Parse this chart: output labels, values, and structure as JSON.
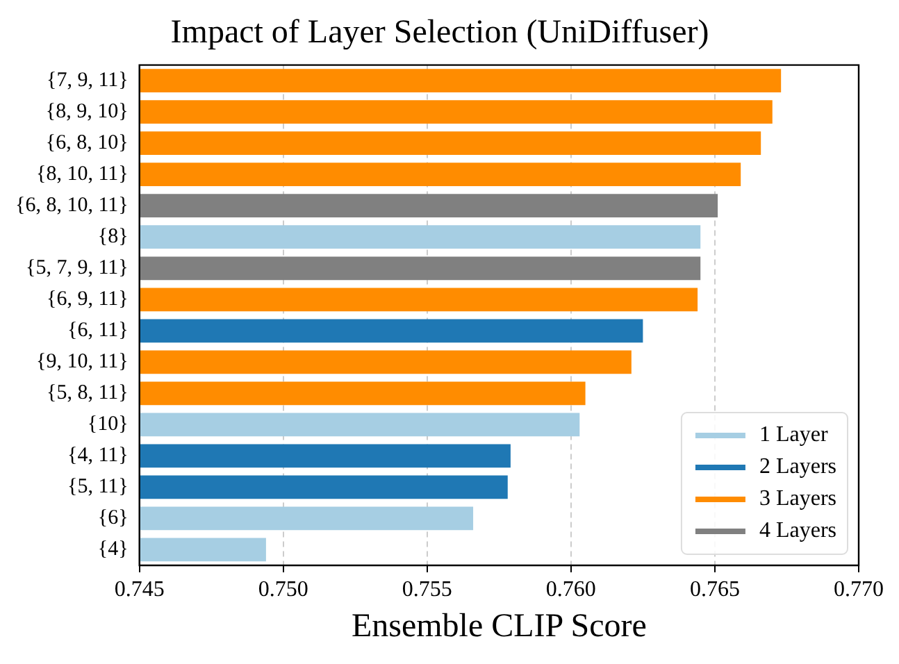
{
  "chart_data": {
    "type": "bar",
    "orientation": "horizontal",
    "title": "Impact of Layer Selection (UniDiffuser)",
    "xlabel": "Ensemble CLIP Score",
    "categories": [
      "{7, 9, 11}",
      "{8, 9, 10}",
      "{6, 8, 10}",
      "{8, 10, 11}",
      "{6, 8, 10, 11}",
      "{8}",
      "{5, 7, 9, 11}",
      "{6, 9, 11}",
      "{6, 11}",
      "{9, 10, 11}",
      "{5, 8, 11}",
      "{10}",
      "{4, 11}",
      "{5, 11}",
      "{6}",
      "{4}"
    ],
    "series": [
      {
        "name": "1 Layer",
        "color": "#a6cee3",
        "values": [
          null,
          null,
          null,
          null,
          null,
          0.7645,
          null,
          null,
          null,
          null,
          null,
          0.7603,
          null,
          null,
          0.7566,
          0.7494
        ]
      },
      {
        "name": "2 Layers",
        "color": "#1f78b4",
        "values": [
          null,
          null,
          null,
          null,
          null,
          null,
          null,
          null,
          0.7625,
          null,
          null,
          null,
          0.7579,
          0.7578,
          null,
          null
        ]
      },
      {
        "name": "3 Layers",
        "color": "#ff8c00",
        "values": [
          0.7673,
          0.767,
          0.7666,
          0.7659,
          null,
          null,
          null,
          0.7644,
          null,
          0.7621,
          0.7605,
          null,
          null,
          null,
          null,
          null
        ]
      },
      {
        "name": "4 Layers",
        "color": "#808080",
        "values": [
          null,
          null,
          null,
          null,
          0.7651,
          null,
          0.7645,
          null,
          null,
          null,
          null,
          null,
          null,
          null,
          null,
          null
        ]
      }
    ],
    "xlim": [
      0.745,
      0.77
    ],
    "xticks": [
      {
        "value": 0.745,
        "label": "0.745"
      },
      {
        "value": 0.75,
        "label": "0.750"
      },
      {
        "value": 0.755,
        "label": "0.755"
      },
      {
        "value": 0.76,
        "label": "0.760"
      },
      {
        "value": 0.765,
        "label": "0.765"
      },
      {
        "value": 0.77,
        "label": "0.770"
      }
    ],
    "grid": "x",
    "legend": "bottom right"
  }
}
